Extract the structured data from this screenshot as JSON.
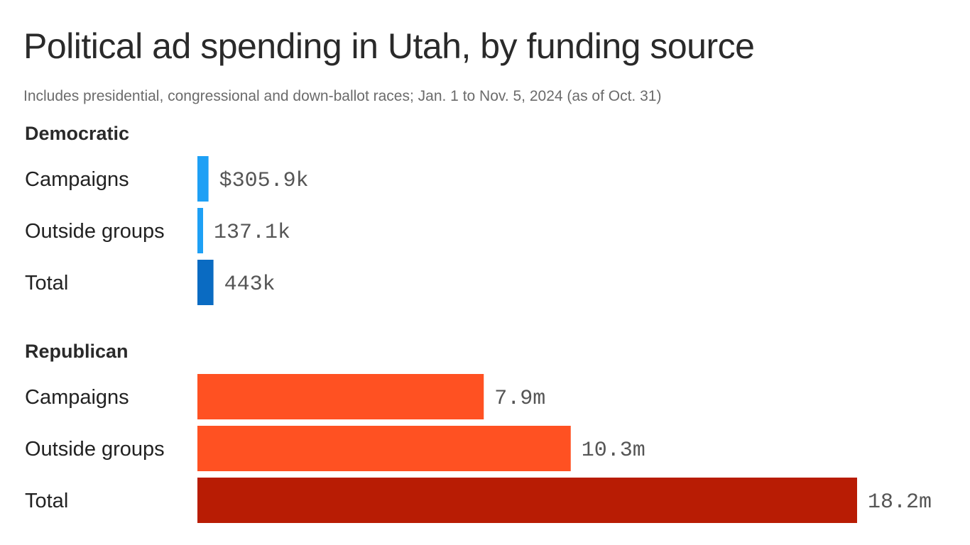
{
  "title": "Political ad spending in Utah, by funding source",
  "subtitle": "Includes presidential, congressional and down-ballot races; Jan. 1 to Nov. 5, 2024 (as of Oct. 31)",
  "chart_data": {
    "type": "bar",
    "orientation": "horizontal",
    "title": "Political ad spending in Utah, by funding source",
    "subtitle": "Includes presidential, congressional and down-ballot races; Jan. 1 to Nov. 5, 2024 (as of Oct. 31)",
    "xlim": [
      0,
      18200000
    ],
    "grid": false,
    "groups": [
      {
        "name": "Democratic",
        "rows": [
          {
            "label": "Campaigns",
            "value": 305900,
            "display": "$305.9k",
            "color": "#1ea0f5"
          },
          {
            "label": "Outside groups",
            "value": 137100,
            "display": "137.1k",
            "color": "#1ea0f5"
          },
          {
            "label": "Total",
            "value": 443000,
            "display": "443k",
            "color": "#0a6bc2"
          }
        ]
      },
      {
        "name": "Republican",
        "rows": [
          {
            "label": "Campaigns",
            "value": 7900000,
            "display": "7.9m",
            "color": "#ff5122"
          },
          {
            "label": "Outside groups",
            "value": 10300000,
            "display": "10.3m",
            "color": "#ff5122"
          },
          {
            "label": "Total",
            "value": 18200000,
            "display": "18.2m",
            "color": "#b81c04"
          }
        ]
      }
    ]
  }
}
